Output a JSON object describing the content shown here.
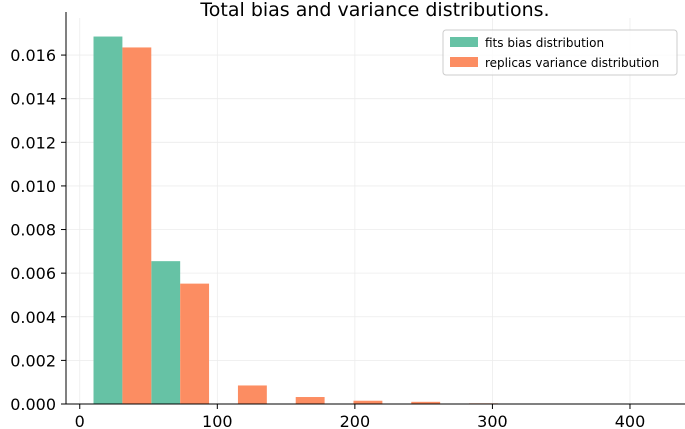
{
  "chart_data": {
    "type": "bar",
    "title": "Total bias and variance distributions.",
    "xlabel": "",
    "ylabel": "",
    "xlim": [
      -10,
      440
    ],
    "ylim": [
      0,
      0.0177
    ],
    "bin_edges": [
      10,
      52,
      94,
      136,
      178,
      220,
      262,
      304,
      346,
      388,
      430
    ],
    "x_ticks": [
      0,
      100,
      200,
      300,
      400
    ],
    "x_tick_labels": [
      "0",
      "100",
      "200",
      "300",
      "400"
    ],
    "y_ticks": [
      0.0,
      0.002,
      0.004,
      0.006,
      0.008,
      0.01,
      0.012,
      0.014,
      0.016
    ],
    "y_tick_labels": [
      "0.000",
      "0.002",
      "0.004",
      "0.006",
      "0.008",
      "0.010",
      "0.012",
      "0.014",
      "0.016"
    ],
    "grid": true,
    "legend_position": "top-right",
    "series": [
      {
        "name": "fits bias distribution",
        "color": "#66c2a5",
        "values": [
          0.01685,
          0.00655,
          0,
          0,
          0,
          0,
          0,
          0,
          0,
          0
        ]
      },
      {
        "name": "replicas variance distribution",
        "color": "#fc8d62",
        "values": [
          0.01635,
          0.00552,
          0.00085,
          0.00032,
          0.00015,
          0.0001,
          3e-05,
          1e-05,
          2e-05,
          1e-05
        ]
      }
    ]
  }
}
